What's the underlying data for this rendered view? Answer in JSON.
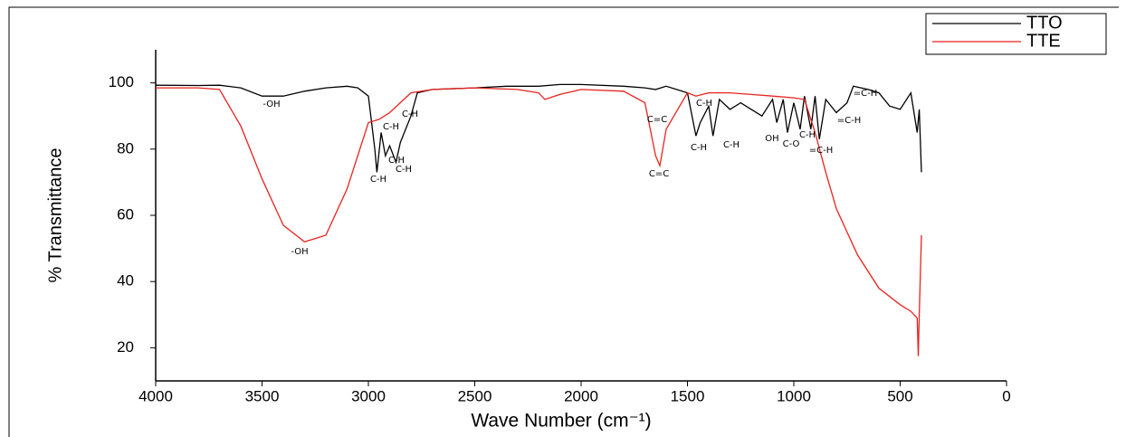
{
  "chart_data": {
    "type": "line",
    "xlabel": "Wave Number (cm⁻¹)",
    "ylabel": "% Transmittance",
    "xlim": [
      4000,
      0
    ],
    "xticks": [
      4000,
      3500,
      3000,
      2500,
      2000,
      1500,
      1000,
      500,
      0
    ],
    "ylim": [
      10,
      110
    ],
    "yticks": [
      20,
      40,
      60,
      80,
      100
    ],
    "legend": "upper right",
    "series": [
      {
        "name": "TTO",
        "color": "#000000",
        "x": [
          4000,
          3800,
          3700,
          3600,
          3500,
          3400,
          3300,
          3200,
          3100,
          3050,
          3000,
          2970,
          2960,
          2940,
          2920,
          2900,
          2870,
          2850,
          2800,
          2770,
          2700,
          2500,
          2350,
          2200,
          2100,
          2000,
          1800,
          1700,
          1650,
          1600,
          1500,
          1460,
          1440,
          1400,
          1380,
          1350,
          1300,
          1250,
          1200,
          1150,
          1100,
          1080,
          1050,
          1030,
          1000,
          970,
          950,
          920,
          900,
          880,
          850,
          800,
          750,
          720,
          650,
          600,
          550,
          500,
          450,
          420,
          410,
          400
        ],
        "values": [
          99.3,
          99.2,
          99.3,
          98.5,
          96,
          96,
          97.5,
          98.5,
          99,
          98.5,
          96,
          80,
          73,
          85,
          78,
          81,
          76,
          82,
          90,
          97,
          98,
          98.5,
          99,
          99,
          99.5,
          99.5,
          99,
          98.5,
          98,
          99,
          97,
          84,
          88,
          93,
          84,
          95,
          92,
          94,
          92,
          90,
          95,
          88,
          95,
          85,
          94,
          86,
          96,
          86,
          96,
          83,
          95,
          91,
          94,
          99,
          98,
          97,
          93,
          92,
          97,
          85,
          92,
          73
        ]
      },
      {
        "name": "TTE",
        "color": "#e8231f",
        "x": [
          4000,
          3800,
          3700,
          3600,
          3500,
          3400,
          3300,
          3200,
          3100,
          3000,
          2950,
          2900,
          2800,
          2700,
          2500,
          2300,
          2200,
          2170,
          2100,
          2000,
          1800,
          1700,
          1650,
          1630,
          1600,
          1500,
          1460,
          1400,
          1300,
          1200,
          1100,
          1000,
          950,
          900,
          850,
          800,
          700,
          600,
          500,
          450,
          420,
          415,
          410,
          400
        ],
        "values": [
          98.5,
          98.5,
          98,
          87,
          71,
          57,
          52,
          54,
          68,
          88,
          89,
          91,
          97,
          98,
          98.5,
          98,
          97,
          95,
          96.5,
          98,
          97.5,
          94,
          78,
          75,
          86,
          97,
          96,
          97,
          97,
          96.5,
          96,
          95.5,
          95,
          85,
          73,
          62,
          48,
          38,
          33,
          31,
          29,
          17.5,
          30,
          54
        ]
      }
    ],
    "annotations": [
      "-OH",
      "-OH",
      "C-H",
      "C-H",
      "C-H",
      "C-H",
      "C-H",
      "C=C",
      "C=C",
      "C-H",
      "C-H",
      "C-H",
      "OH",
      "C-O",
      "C-H",
      "=C-H",
      "=C-H",
      "=C-H"
    ]
  }
}
